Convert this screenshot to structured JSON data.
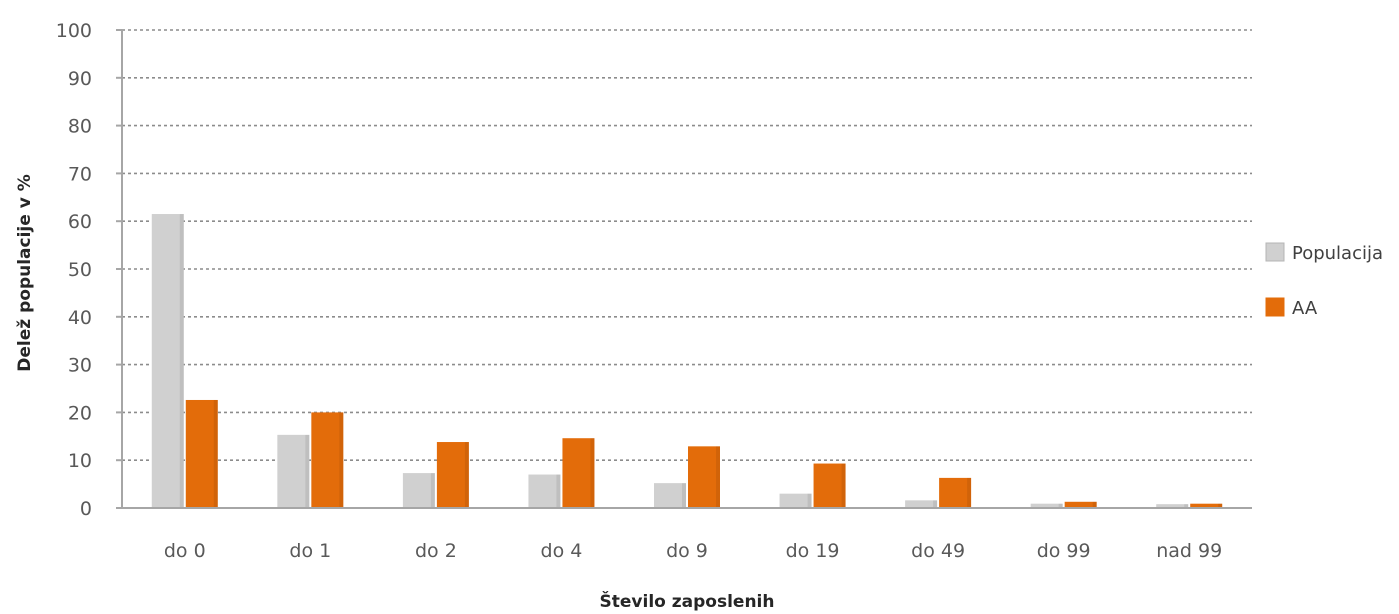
{
  "chart_data": {
    "type": "bar",
    "title": "",
    "xlabel": "Število zaposlenih",
    "ylabel": "Delež populacije v %",
    "ylim": [
      0,
      100
    ],
    "yticks": [
      0,
      10,
      20,
      30,
      40,
      50,
      60,
      70,
      80,
      90,
      100
    ],
    "grid": true,
    "legend_position": "right",
    "categories": [
      "do 0",
      "do 1",
      "do 2",
      "do 4",
      "do 9",
      "do 19",
      "do 49",
      "do 99",
      "nad 99"
    ],
    "series": [
      {
        "name": "Populacija",
        "color": "#d0d0d0",
        "values": [
          61.5,
          15.3,
          7.3,
          7.0,
          5.2,
          3.0,
          1.6,
          0.9,
          0.8
        ]
      },
      {
        "name": "AA",
        "color": "#e36c0a",
        "values": [
          22.6,
          20.0,
          13.8,
          14.6,
          12.9,
          9.3,
          6.3,
          1.3,
          0.9
        ]
      }
    ]
  }
}
